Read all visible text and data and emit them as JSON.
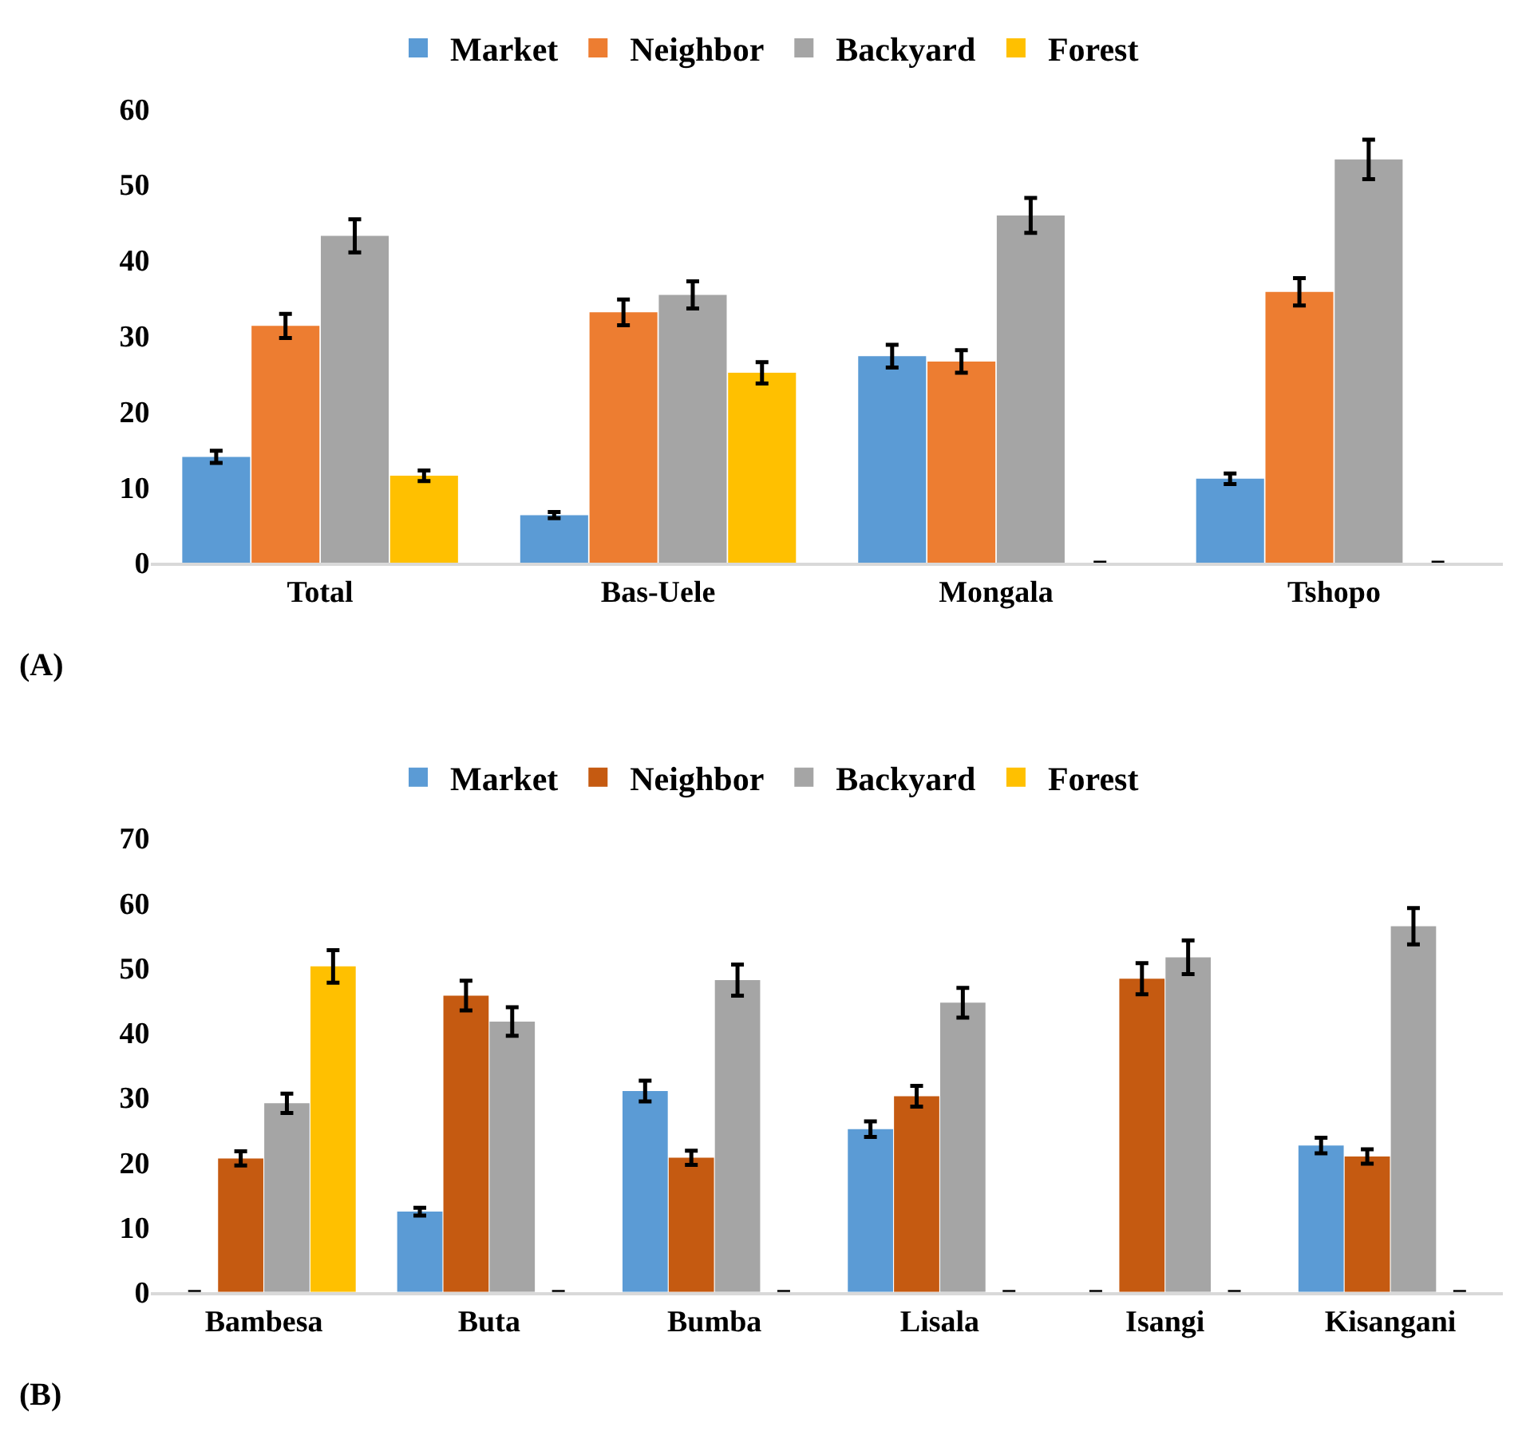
{
  "chart_data": [
    {
      "type": "bar",
      "categories": [
        "Total",
        "Bas-Uele",
        "Mongala",
        "Tshopo"
      ],
      "ylim": [
        0,
        60
      ],
      "yticks": [
        0,
        10,
        20,
        30,
        40,
        50,
        60
      ],
      "legend": "top",
      "grid": false,
      "annotations": [
        "(A)"
      ],
      "series": [
        {
          "name": "Market",
          "color": "#5b9bd5",
          "values": [
            14.0,
            6.3,
            27.3,
            11.1
          ],
          "errors": [
            0.8,
            0.4,
            1.5,
            0.7
          ]
        },
        {
          "name": "Neighbor",
          "color": "#ed7d31",
          "values": [
            31.3,
            33.1,
            26.6,
            35.8
          ],
          "errors": [
            1.6,
            1.7,
            1.5,
            1.8
          ]
        },
        {
          "name": "Backyard",
          "color": "#a5a5a5",
          "values": [
            43.2,
            35.4,
            45.9,
            53.3
          ],
          "errors": [
            2.2,
            1.8,
            2.3,
            2.6
          ]
        },
        {
          "name": "Forest",
          "color": "#ffc000",
          "values": [
            11.5,
            25.1,
            0,
            0
          ],
          "errors": [
            0.7,
            1.4,
            null,
            null
          ]
        }
      ]
    },
    {
      "type": "bar",
      "categories": [
        "Bambesa",
        "Buta",
        "Bumba",
        "Lisala",
        "Isangi",
        "Kisangani"
      ],
      "ylim": [
        0,
        70
      ],
      "yticks": [
        0,
        10,
        20,
        30,
        40,
        50,
        60,
        70
      ],
      "legend": "top",
      "grid": false,
      "annotations": [
        "(B)"
      ],
      "series": [
        {
          "name": "Market",
          "color": "#5b9bd5",
          "values": [
            0,
            12.4,
            31.0,
            25.1,
            0,
            22.6
          ],
          "errors": [
            null,
            0.6,
            1.6,
            1.2,
            null,
            1.2
          ]
        },
        {
          "name": "Neighbor",
          "color": "#c55a11",
          "values": [
            20.6,
            45.7,
            20.7,
            30.2,
            48.3,
            20.9
          ],
          "errors": [
            1.1,
            2.3,
            1.1,
            1.6,
            2.4,
            1.1
          ]
        },
        {
          "name": "Backyard",
          "color": "#a5a5a5",
          "values": [
            29.1,
            41.7,
            48.1,
            44.6,
            51.6,
            56.4
          ],
          "errors": [
            1.5,
            2.2,
            2.4,
            2.3,
            2.6,
            2.8
          ]
        },
        {
          "name": "Forest",
          "color": "#ffc000",
          "values": [
            50.2,
            0,
            0,
            0,
            0,
            0
          ],
          "errors": [
            2.5,
            null,
            null,
            null,
            null,
            null
          ]
        }
      ]
    }
  ]
}
